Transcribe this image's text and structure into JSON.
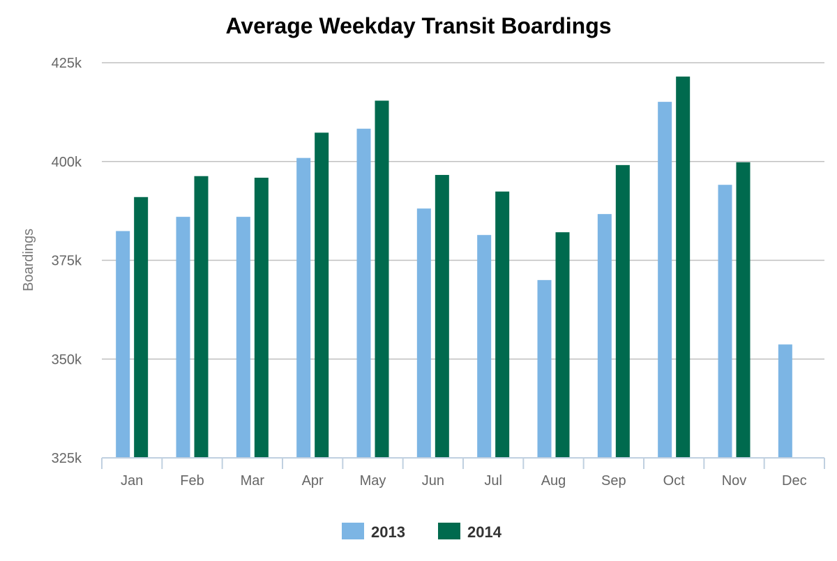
{
  "chart_data": {
    "type": "bar",
    "title": "Average Weekday Transit Boardings",
    "xlabel": "",
    "ylabel": "Boardings",
    "ylim": [
      325000,
      425000
    ],
    "yticks": [
      325000,
      350000,
      375000,
      400000,
      425000
    ],
    "ytick_labels": [
      "325k",
      "350k",
      "375k",
      "400k",
      "425k"
    ],
    "grid": true,
    "legend": "bottom-center",
    "categories": [
      "Jan",
      "Feb",
      "Mar",
      "Apr",
      "May",
      "Jun",
      "Jul",
      "Aug",
      "Sep",
      "Oct",
      "Nov",
      "Dec"
    ],
    "series": [
      {
        "name": "2013",
        "color": "#7cb5e4",
        "values": [
          382400,
          386000,
          386000,
          400900,
          408300,
          388100,
          381400,
          370000,
          386700,
          415100,
          394100,
          353700
        ]
      },
      {
        "name": "2014",
        "color": "#006a4e",
        "values": [
          391000,
          396300,
          395900,
          407300,
          415400,
          396600,
          392400,
          382100,
          399100,
          421500,
          399800,
          null
        ]
      }
    ]
  }
}
